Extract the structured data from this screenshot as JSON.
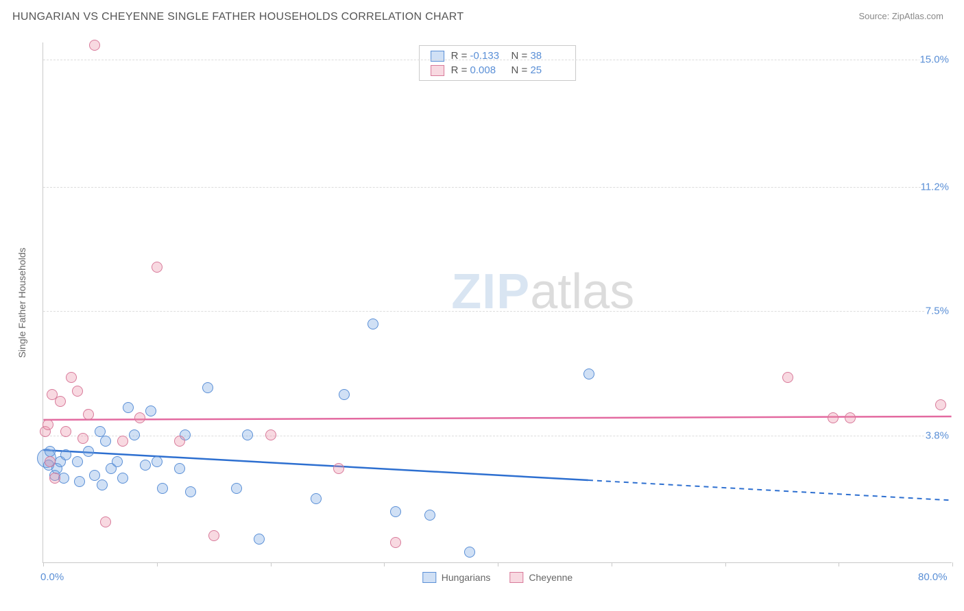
{
  "header": {
    "title": "HUNGARIAN VS CHEYENNE SINGLE FATHER HOUSEHOLDS CORRELATION CHART",
    "source_label": "Source: ",
    "source_link": "ZipAtlas.com"
  },
  "watermark": {
    "part1": "ZIP",
    "part2": "atlas"
  },
  "chart": {
    "type": "scatter",
    "background_color": "#ffffff",
    "grid_color": "#dcdcdc",
    "axis_color": "#c9c9c9",
    "tick_label_color": "#5a8fd6",
    "y_axis_title": "Single Father Households",
    "xlim": [
      0,
      80
    ],
    "ylim": [
      0,
      15.5
    ],
    "x_ticks": [
      0,
      10,
      20,
      30,
      40,
      50,
      60,
      70,
      80
    ],
    "x_labels": [
      {
        "v": 0,
        "t": "0.0%"
      },
      {
        "v": 80,
        "t": "80.0%"
      }
    ],
    "y_gridlines": [
      3.8,
      7.5,
      11.2,
      15.0
    ],
    "y_labels": [
      {
        "v": 3.8,
        "t": "3.8%"
      },
      {
        "v": 7.5,
        "t": "7.5%"
      },
      {
        "v": 11.2,
        "t": "11.2%"
      },
      {
        "v": 15.0,
        "t": "15.0%"
      }
    ],
    "point_radius": 8,
    "series": [
      {
        "name": "Hungarians",
        "fill": "rgba(120,165,225,0.35)",
        "stroke": "#5a8fd6",
        "trend_color": "#2d6fd0",
        "trend_solid_until_x": 48,
        "trend": {
          "x0": 0,
          "y0": 3.35,
          "x1": 80,
          "y1": 1.85
        },
        "R": "-0.133",
        "N": "38",
        "points": [
          {
            "x": 0.3,
            "y": 3.1,
            "r": 14
          },
          {
            "x": 0.5,
            "y": 2.9
          },
          {
            "x": 0.6,
            "y": 3.3
          },
          {
            "x": 1.0,
            "y": 2.6
          },
          {
            "x": 1.2,
            "y": 2.8
          },
          {
            "x": 1.5,
            "y": 3.0
          },
          {
            "x": 1.8,
            "y": 2.5
          },
          {
            "x": 2.0,
            "y": 3.2
          },
          {
            "x": 3.0,
            "y": 3.0
          },
          {
            "x": 3.2,
            "y": 2.4
          },
          {
            "x": 4.0,
            "y": 3.3
          },
          {
            "x": 4.5,
            "y": 2.6
          },
          {
            "x": 5.0,
            "y": 3.9
          },
          {
            "x": 5.2,
            "y": 2.3
          },
          {
            "x": 5.5,
            "y": 3.6
          },
          {
            "x": 6.0,
            "y": 2.8
          },
          {
            "x": 6.5,
            "y": 3.0
          },
          {
            "x": 7.0,
            "y": 2.5
          },
          {
            "x": 7.5,
            "y": 4.6
          },
          {
            "x": 8.0,
            "y": 3.8
          },
          {
            "x": 9.0,
            "y": 2.9
          },
          {
            "x": 9.5,
            "y": 4.5
          },
          {
            "x": 10.0,
            "y": 3.0
          },
          {
            "x": 10.5,
            "y": 2.2
          },
          {
            "x": 12.0,
            "y": 2.8
          },
          {
            "x": 12.5,
            "y": 3.8
          },
          {
            "x": 13.0,
            "y": 2.1
          },
          {
            "x": 14.5,
            "y": 5.2
          },
          {
            "x": 17.0,
            "y": 2.2
          },
          {
            "x": 18.0,
            "y": 3.8
          },
          {
            "x": 19.0,
            "y": 0.7
          },
          {
            "x": 24.0,
            "y": 1.9
          },
          {
            "x": 26.5,
            "y": 5.0
          },
          {
            "x": 29.0,
            "y": 7.1
          },
          {
            "x": 31.0,
            "y": 1.5
          },
          {
            "x": 34.0,
            "y": 1.4
          },
          {
            "x": 37.5,
            "y": 0.3
          },
          {
            "x": 48.0,
            "y": 5.6
          }
        ]
      },
      {
        "name": "Cheyenne",
        "fill": "rgba(235,145,170,0.35)",
        "stroke": "#d87a9a",
        "trend_color": "#e36aa0",
        "trend_solid_until_x": 80,
        "trend": {
          "x0": 0,
          "y0": 4.25,
          "x1": 80,
          "y1": 4.35
        },
        "R": "0.008",
        "N": "25",
        "points": [
          {
            "x": 0.2,
            "y": 3.9
          },
          {
            "x": 0.4,
            "y": 4.1
          },
          {
            "x": 0.6,
            "y": 3.0
          },
          {
            "x": 0.8,
            "y": 5.0
          },
          {
            "x": 1.0,
            "y": 2.5
          },
          {
            "x": 1.5,
            "y": 4.8
          },
          {
            "x": 2.0,
            "y": 3.9
          },
          {
            "x": 2.5,
            "y": 5.5
          },
          {
            "x": 3.0,
            "y": 5.1
          },
          {
            "x": 3.5,
            "y": 3.7
          },
          {
            "x": 4.0,
            "y": 4.4
          },
          {
            "x": 4.5,
            "y": 15.4
          },
          {
            "x": 5.5,
            "y": 1.2
          },
          {
            "x": 7.0,
            "y": 3.6
          },
          {
            "x": 8.5,
            "y": 4.3
          },
          {
            "x": 10.0,
            "y": 8.8
          },
          {
            "x": 12.0,
            "y": 3.6
          },
          {
            "x": 15.0,
            "y": 0.8
          },
          {
            "x": 20.0,
            "y": 3.8
          },
          {
            "x": 26.0,
            "y": 2.8
          },
          {
            "x": 31.0,
            "y": 0.6
          },
          {
            "x": 65.5,
            "y": 5.5
          },
          {
            "x": 69.5,
            "y": 4.3
          },
          {
            "x": 71.0,
            "y": 4.3
          },
          {
            "x": 79.0,
            "y": 4.7
          }
        ]
      }
    ],
    "stats_box": {
      "R_label": "R =",
      "N_label": "N ="
    },
    "bottom_legend": [
      "Hungarians",
      "Cheyenne"
    ]
  }
}
